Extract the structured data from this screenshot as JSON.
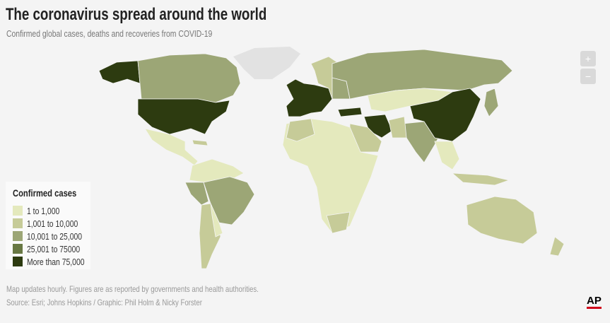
{
  "header": {
    "title": "The coronavirus spread around the world",
    "subtitle": "Confirmed global cases, deaths and recoveries from COVID-19"
  },
  "zoom": {
    "in": "+",
    "out": "−"
  },
  "legend": {
    "title": "Confirmed cases",
    "items": [
      {
        "label": "1 to 1,000",
        "color": "#e4e9bd"
      },
      {
        "label": "1,001 to 10,000",
        "color": "#c6cb98"
      },
      {
        "label": "10,001 to 25,000",
        "color": "#9ca676"
      },
      {
        "label": "25,001 to 75000",
        "color": "#687843"
      },
      {
        "label": "More than 75,000",
        "color": "#2d3b10"
      }
    ]
  },
  "footer": {
    "note": "Map updates hourly. Figures are as reported by governments and health authorities.",
    "source": "Source: Esri; Johns Hopkins / Graphic: Phil Holm & Nicky Forster",
    "logo": "AP"
  }
}
